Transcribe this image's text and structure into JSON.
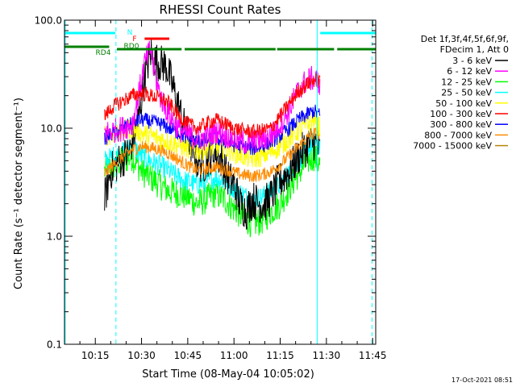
{
  "chart_data": {
    "type": "line",
    "title": "RHESSI Count Rates",
    "xlabel": "Start Time (08-May-04 10:05:02)",
    "ylabel": "Count Rate (s⁻¹ detector segment⁻¹)",
    "yscale": "log",
    "ylim": [
      0.1,
      100.0
    ],
    "yticks": [
      {
        "v": 0.1,
        "label": "0.1"
      },
      {
        "v": 1.0,
        "label": "1.0"
      },
      {
        "v": 10.0,
        "label": "10.0"
      },
      {
        "v": 100.0,
        "label": "100.0"
      }
    ],
    "xlim_minutes": [
      605.0,
      706.0
    ],
    "xticks": [
      {
        "m": 615,
        "label": "10:15"
      },
      {
        "m": 630,
        "label": "10:30"
      },
      {
        "m": 645,
        "label": "10:45"
      },
      {
        "m": 660,
        "label": "11:00"
      },
      {
        "m": 675,
        "label": "11:15"
      },
      {
        "m": 690,
        "label": "11:30"
      },
      {
        "m": 705,
        "label": "11:45"
      }
    ],
    "legend": {
      "placement": "right",
      "header": [
        "Det 1f,3f,4f,5f,6f,9f,",
        "FDecim 1, Att 0"
      ]
    },
    "series": [
      {
        "name": "3 - 6 keV",
        "color": "#000000",
        "noise": 0.18,
        "dy": 0.0,
        "x": [
          618,
          620,
          623,
          626,
          629,
          631,
          633,
          634,
          636,
          638,
          640,
          642,
          644,
          646,
          648,
          650,
          652,
          654,
          656,
          658,
          660,
          662,
          664,
          666,
          668,
          670,
          672,
          674,
          676,
          678,
          680,
          682,
          684,
          686,
          688
        ],
        "y": [
          2.2,
          4.0,
          5.0,
          6.0,
          12,
          30,
          50,
          43,
          40,
          38,
          25,
          16,
          10,
          7,
          5,
          4.5,
          5.5,
          6.0,
          5.0,
          3.5,
          3.0,
          2.0,
          1.7,
          2.2,
          2.0,
          2.0,
          2.3,
          3.0,
          3.5,
          4.0,
          5.0,
          6.0,
          7.0,
          7.5,
          6.0
        ]
      },
      {
        "name": "6 - 12 keV",
        "color": "#ff00ff",
        "noise": 0.12,
        "dy": 0.0,
        "x": [
          618,
          621,
          624,
          627,
          629,
          631,
          633,
          634,
          636,
          638,
          640,
          642,
          644,
          646,
          648,
          650,
          652,
          654,
          656,
          658,
          660,
          662,
          664,
          666,
          668,
          670,
          672,
          674,
          676,
          678,
          680,
          682,
          684,
          686,
          688
        ],
        "y": [
          9.0,
          9.5,
          10,
          11,
          20,
          40,
          55,
          35,
          20,
          15,
          12,
          10,
          9.0,
          8.5,
          8.2,
          8.0,
          8.5,
          9.5,
          9.0,
          8.5,
          8.0,
          7.5,
          7.3,
          7.5,
          7.8,
          8.0,
          8.5,
          10,
          12,
          15,
          20,
          25,
          28,
          29,
          26
        ]
      },
      {
        "name": "12 - 25 keV",
        "color": "#00ff00",
        "noise": 0.14,
        "dy": 0.0,
        "x": [
          618,
          621,
          624,
          627,
          630,
          633,
          636,
          639,
          642,
          645,
          648,
          651,
          654,
          657,
          660,
          663,
          666,
          669,
          672,
          675,
          678,
          681,
          684,
          686,
          688
        ],
        "y": [
          4.0,
          4.5,
          5.0,
          5.5,
          4.0,
          3.5,
          3.0,
          2.6,
          2.5,
          2.3,
          2.0,
          2.2,
          2.5,
          2.2,
          1.8,
          1.5,
          1.3,
          1.4,
          1.7,
          2.0,
          2.8,
          3.8,
          5.0,
          5.5,
          4.5
        ]
      },
      {
        "name": "25 - 50 keV",
        "color": "#00ffff",
        "noise": 0.1,
        "dy": 0.0,
        "x": [
          618,
          621,
          624,
          627,
          630,
          633,
          636,
          639,
          642,
          645,
          648,
          651,
          654,
          657,
          660,
          663,
          666,
          669,
          672,
          675,
          678,
          681,
          684,
          686,
          688
        ],
        "y": [
          5.0,
          5.5,
          6.0,
          7.0,
          5.5,
          5.0,
          4.5,
          4.0,
          3.5,
          3.2,
          3.0,
          3.2,
          3.5,
          3.2,
          2.8,
          2.4,
          2.2,
          2.3,
          2.6,
          3.0,
          4.0,
          5.0,
          6.5,
          7.5,
          7.0
        ]
      },
      {
        "name": "50 - 100 keV",
        "color": "#ffff00",
        "noise": 0.1,
        "dy": 0.0,
        "x": [
          618,
          621,
          624,
          627,
          630,
          633,
          636,
          639,
          642,
          645,
          648,
          651,
          654,
          657,
          660,
          663,
          666,
          669,
          672,
          675,
          678,
          681,
          684,
          686,
          688
        ],
        "y": [
          8.5,
          9.0,
          9.5,
          10,
          9.0,
          8.5,
          8.0,
          7.5,
          7.0,
          6.5,
          6.2,
          6.5,
          6.8,
          6.5,
          6.0,
          5.5,
          5.2,
          5.5,
          6.0,
          6.8,
          8.0,
          9.5,
          11,
          12,
          10
        ]
      },
      {
        "name": "100 - 300 keV",
        "color": "#ff0000",
        "noise": 0.07,
        "dy": 0.0,
        "x": [
          618,
          621,
          624,
          627,
          630,
          633,
          636,
          639,
          642,
          645,
          648,
          651,
          654,
          657,
          660,
          663,
          666,
          669,
          672,
          675,
          678,
          681,
          684,
          686,
          688
        ],
        "y": [
          13,
          16,
          18,
          20,
          21,
          20,
          19,
          17,
          13,
          11,
          10,
          11,
          12,
          11,
          10,
          9.5,
          9.3,
          9.5,
          10,
          13,
          17,
          22,
          26,
          28,
          27
        ]
      },
      {
        "name": "300 - 800 keV",
        "color": "#0000ff",
        "noise": 0.07,
        "dy": 0.0,
        "x": [
          618,
          621,
          624,
          627,
          630,
          633,
          636,
          639,
          642,
          645,
          648,
          651,
          654,
          657,
          660,
          663,
          666,
          669,
          672,
          675,
          678,
          681,
          684,
          686,
          688
        ],
        "y": [
          8.0,
          9.0,
          10,
          11,
          12,
          11.5,
          11,
          10,
          9.0,
          8.0,
          7.5,
          7.8,
          8.0,
          7.6,
          7.0,
          6.7,
          6.5,
          6.8,
          7.5,
          8.5,
          10,
          12,
          13.5,
          14.5,
          13
        ]
      },
      {
        "name": "800 - 7000 keV",
        "color": "#ff8c00",
        "noise": 0.06,
        "dy": 0.0,
        "x": [
          618,
          621,
          624,
          627,
          630,
          633,
          636,
          639,
          642,
          645,
          648,
          651,
          654,
          657,
          660,
          663,
          666,
          669,
          672,
          675,
          678,
          681,
          684,
          686,
          688
        ],
        "y": [
          3.8,
          4.6,
          5.5,
          6.3,
          6.8,
          6.6,
          6.3,
          5.8,
          5.1,
          4.5,
          4.1,
          4.2,
          4.4,
          4.2,
          3.9,
          3.7,
          3.6,
          3.7,
          4.0,
          4.6,
          5.6,
          6.8,
          8.2,
          9.0,
          8.8
        ]
      },
      {
        "name": "7000 - 15000 keV",
        "color": "#b8860b",
        "noise": 0.0,
        "dy": 0.0,
        "x": [],
        "y": []
      }
    ],
    "bars": [
      {
        "label": "N",
        "color": "#00ffff",
        "dy": 0,
        "segments": [
          [
            605,
            621.5
          ],
          [
            688,
            706
          ]
        ]
      },
      {
        "label": "F",
        "color": "#ff0000",
        "dy": 0,
        "segments": [
          [
            631,
            639
          ]
        ]
      },
      {
        "label": "RD0",
        "color": "#008000",
        "dy": 0,
        "segments": [
          [
            622,
            643
          ],
          [
            644,
            673.5
          ],
          [
            674,
            692.5
          ],
          [
            693.5,
            706
          ]
        ]
      },
      {
        "label": "RD4",
        "color": "#008000",
        "dy": 0,
        "segments": [
          [
            605,
            619.5
          ]
        ]
      }
    ],
    "vlines_cyan_solid_minutes": [
      605.2,
      687.0
    ],
    "vlines_cyan_dashed_minutes": [
      621.7,
      704.8
    ]
  },
  "footer": {
    "timestamp": "17-Oct-2021 08:51"
  }
}
